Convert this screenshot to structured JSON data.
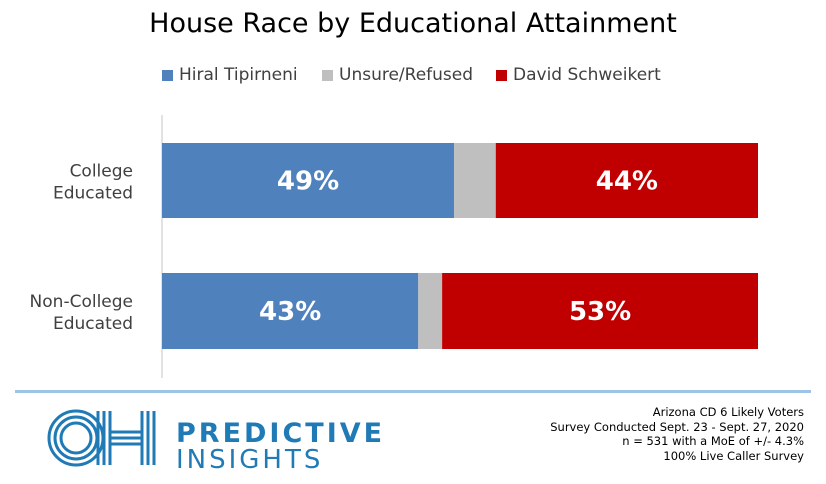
{
  "chart_data": {
    "type": "bar",
    "orientation": "horizontal",
    "stacked": true,
    "title": "House Race by Educational Attainment",
    "categories": [
      "College Educated",
      "Non-College Educated"
    ],
    "series": [
      {
        "name": "Hiral Tipirneni",
        "values": [
          49,
          43
        ],
        "labels": [
          "49%",
          "43%"
        ],
        "color": "#4f81bd"
      },
      {
        "name": "Unsure/Refused",
        "values": [
          7,
          4
        ],
        "labels": [
          "",
          ""
        ],
        "color": "#bfbfbf"
      },
      {
        "name": "David Schweikert",
        "values": [
          44,
          53
        ],
        "labels": [
          "44%",
          "53%"
        ],
        "color": "#c00000"
      }
    ],
    "xlim": [
      0,
      100
    ],
    "grid": false,
    "legend": "top-center"
  },
  "branding": {
    "logo_mark": "OH",
    "name_top": "PREDICTIVE",
    "name_bottom": "INSIGHTS",
    "color": "#1f7ab5"
  },
  "footnote": {
    "line1": "Arizona CD 6 Likely Voters",
    "line2": "Survey Conducted Sept. 23 - Sept. 27, 2020",
    "line3": "n = 531 with a MoE of +/- 4.3%",
    "line4": "100% Live Caller Survey"
  }
}
